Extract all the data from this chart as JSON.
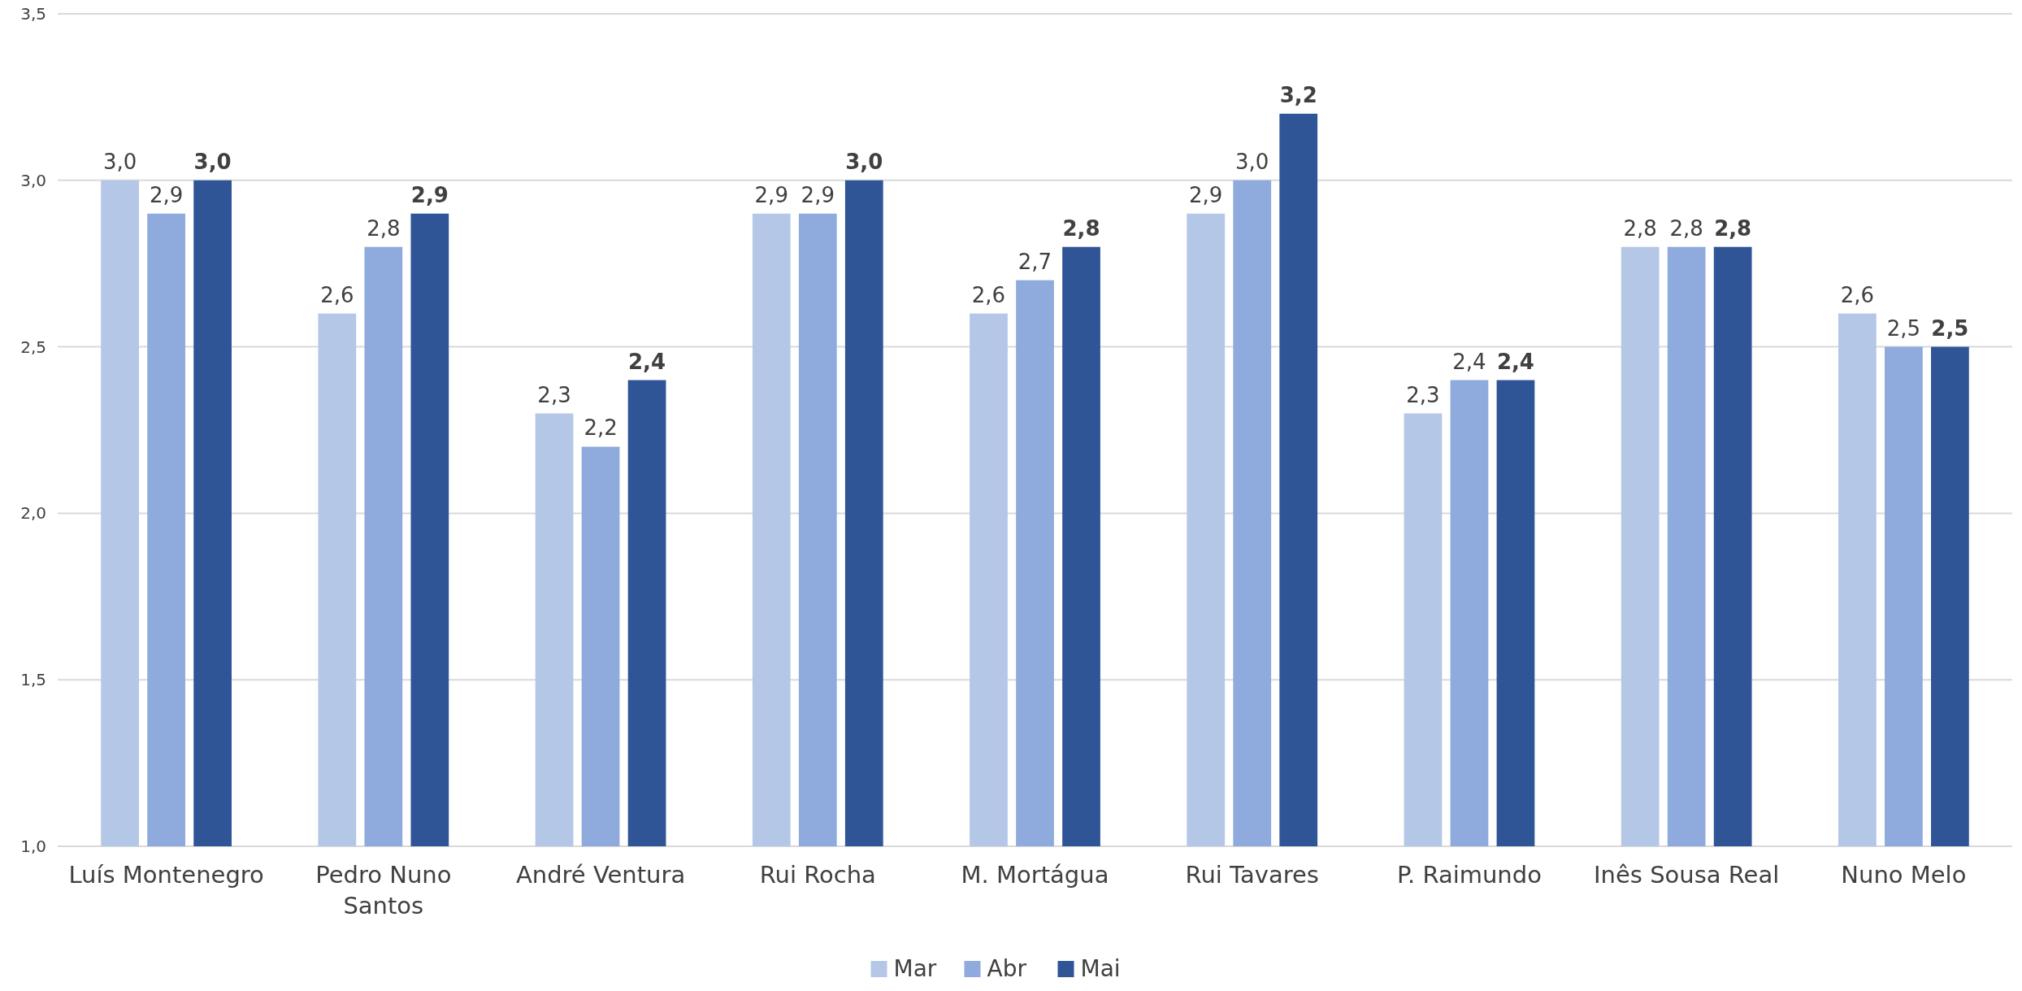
{
  "chart_data": {
    "type": "bar",
    "categories": [
      "Luís Montenegro",
      "Pedro Nuno Santos",
      "André Ventura",
      "Rui Rocha",
      "M. Mortágua",
      "Rui Tavares",
      "P. Raimundo",
      "Inês Sousa Real",
      "Nuno Melo"
    ],
    "series": [
      {
        "name": "Mar",
        "color": "#b4c7e7",
        "values": [
          3.0,
          2.6,
          2.3,
          2.9,
          2.6,
          2.9,
          2.3,
          2.8,
          2.6
        ],
        "value_labels": [
          "3,0",
          "2,6",
          "2,3",
          "2,9",
          "2,6",
          "2,9",
          "2,3",
          "2,8",
          "2,6"
        ]
      },
      {
        "name": "Abr",
        "color": "#8faadc",
        "values": [
          2.9,
          2.8,
          2.2,
          2.9,
          2.7,
          3.0,
          2.4,
          2.8,
          2.5
        ],
        "value_labels": [
          "2,9",
          "2,8",
          "2,2",
          "2,9",
          "2,7",
          "3,0",
          "2,4",
          "2,8",
          "2,5"
        ]
      },
      {
        "name": "Mai",
        "color": "#2f5597",
        "values": [
          3.0,
          2.9,
          2.4,
          3.0,
          2.8,
          3.2,
          2.4,
          2.8,
          2.5
        ],
        "value_labels": [
          "3,0",
          "2,9",
          "2,4",
          "3,0",
          "2,8",
          "3,2",
          "2,4",
          "2,8",
          "2,5"
        ]
      }
    ],
    "ylim": [
      1.0,
      3.5
    ],
    "yticks": [
      {
        "value": 1.0,
        "label": "1,0"
      },
      {
        "value": 1.5,
        "label": "1,5"
      },
      {
        "value": 2.0,
        "label": "2,0"
      },
      {
        "value": 2.5,
        "label": "2,5"
      },
      {
        "value": 3.0,
        "label": "3,0"
      },
      {
        "value": 3.5,
        "label": "3,5"
      }
    ],
    "grid": "y",
    "legend": "bottom"
  }
}
